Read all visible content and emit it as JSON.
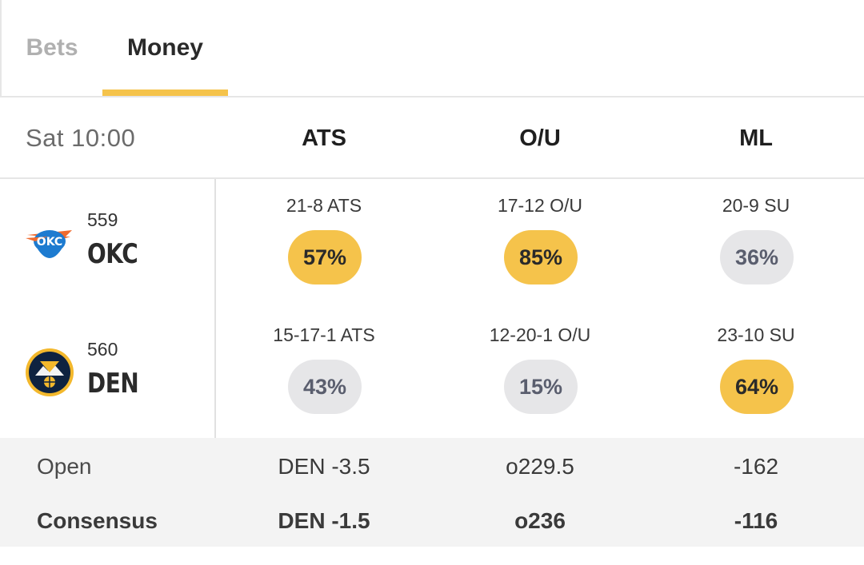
{
  "tabs": [
    {
      "label": "Bets",
      "active": false
    },
    {
      "label": "Money",
      "active": true
    }
  ],
  "accent_color": "#f5c34b",
  "header": {
    "game_time": "Sat 10:00",
    "columns": [
      "ATS",
      "O/U",
      "ML"
    ]
  },
  "teams": [
    {
      "number": "559",
      "abbr": "OKC",
      "logo": "okc-thunder-logo",
      "ats": {
        "record": "21-8 ATS",
        "pct": "57%",
        "highlight": true
      },
      "ou": {
        "record": "17-12 O/U",
        "pct": "85%",
        "highlight": true
      },
      "ml": {
        "record": "20-9 SU",
        "pct": "36%",
        "highlight": false
      }
    },
    {
      "number": "560",
      "abbr": "DEN",
      "logo": "den-nuggets-logo",
      "ats": {
        "record": "15-17-1 ATS",
        "pct": "43%",
        "highlight": false
      },
      "ou": {
        "record": "12-20-1 O/U",
        "pct": "15%",
        "highlight": false
      },
      "ml": {
        "record": "23-10 SU",
        "pct": "64%",
        "highlight": true
      }
    }
  ],
  "lines": {
    "open": {
      "label": "Open",
      "ats": "DEN -3.5",
      "ou": "o229.5",
      "ml": "-162"
    },
    "consensus": {
      "label": "Consensus",
      "ats": "DEN -1.5",
      "ou": "o236",
      "ml": "-116"
    }
  }
}
